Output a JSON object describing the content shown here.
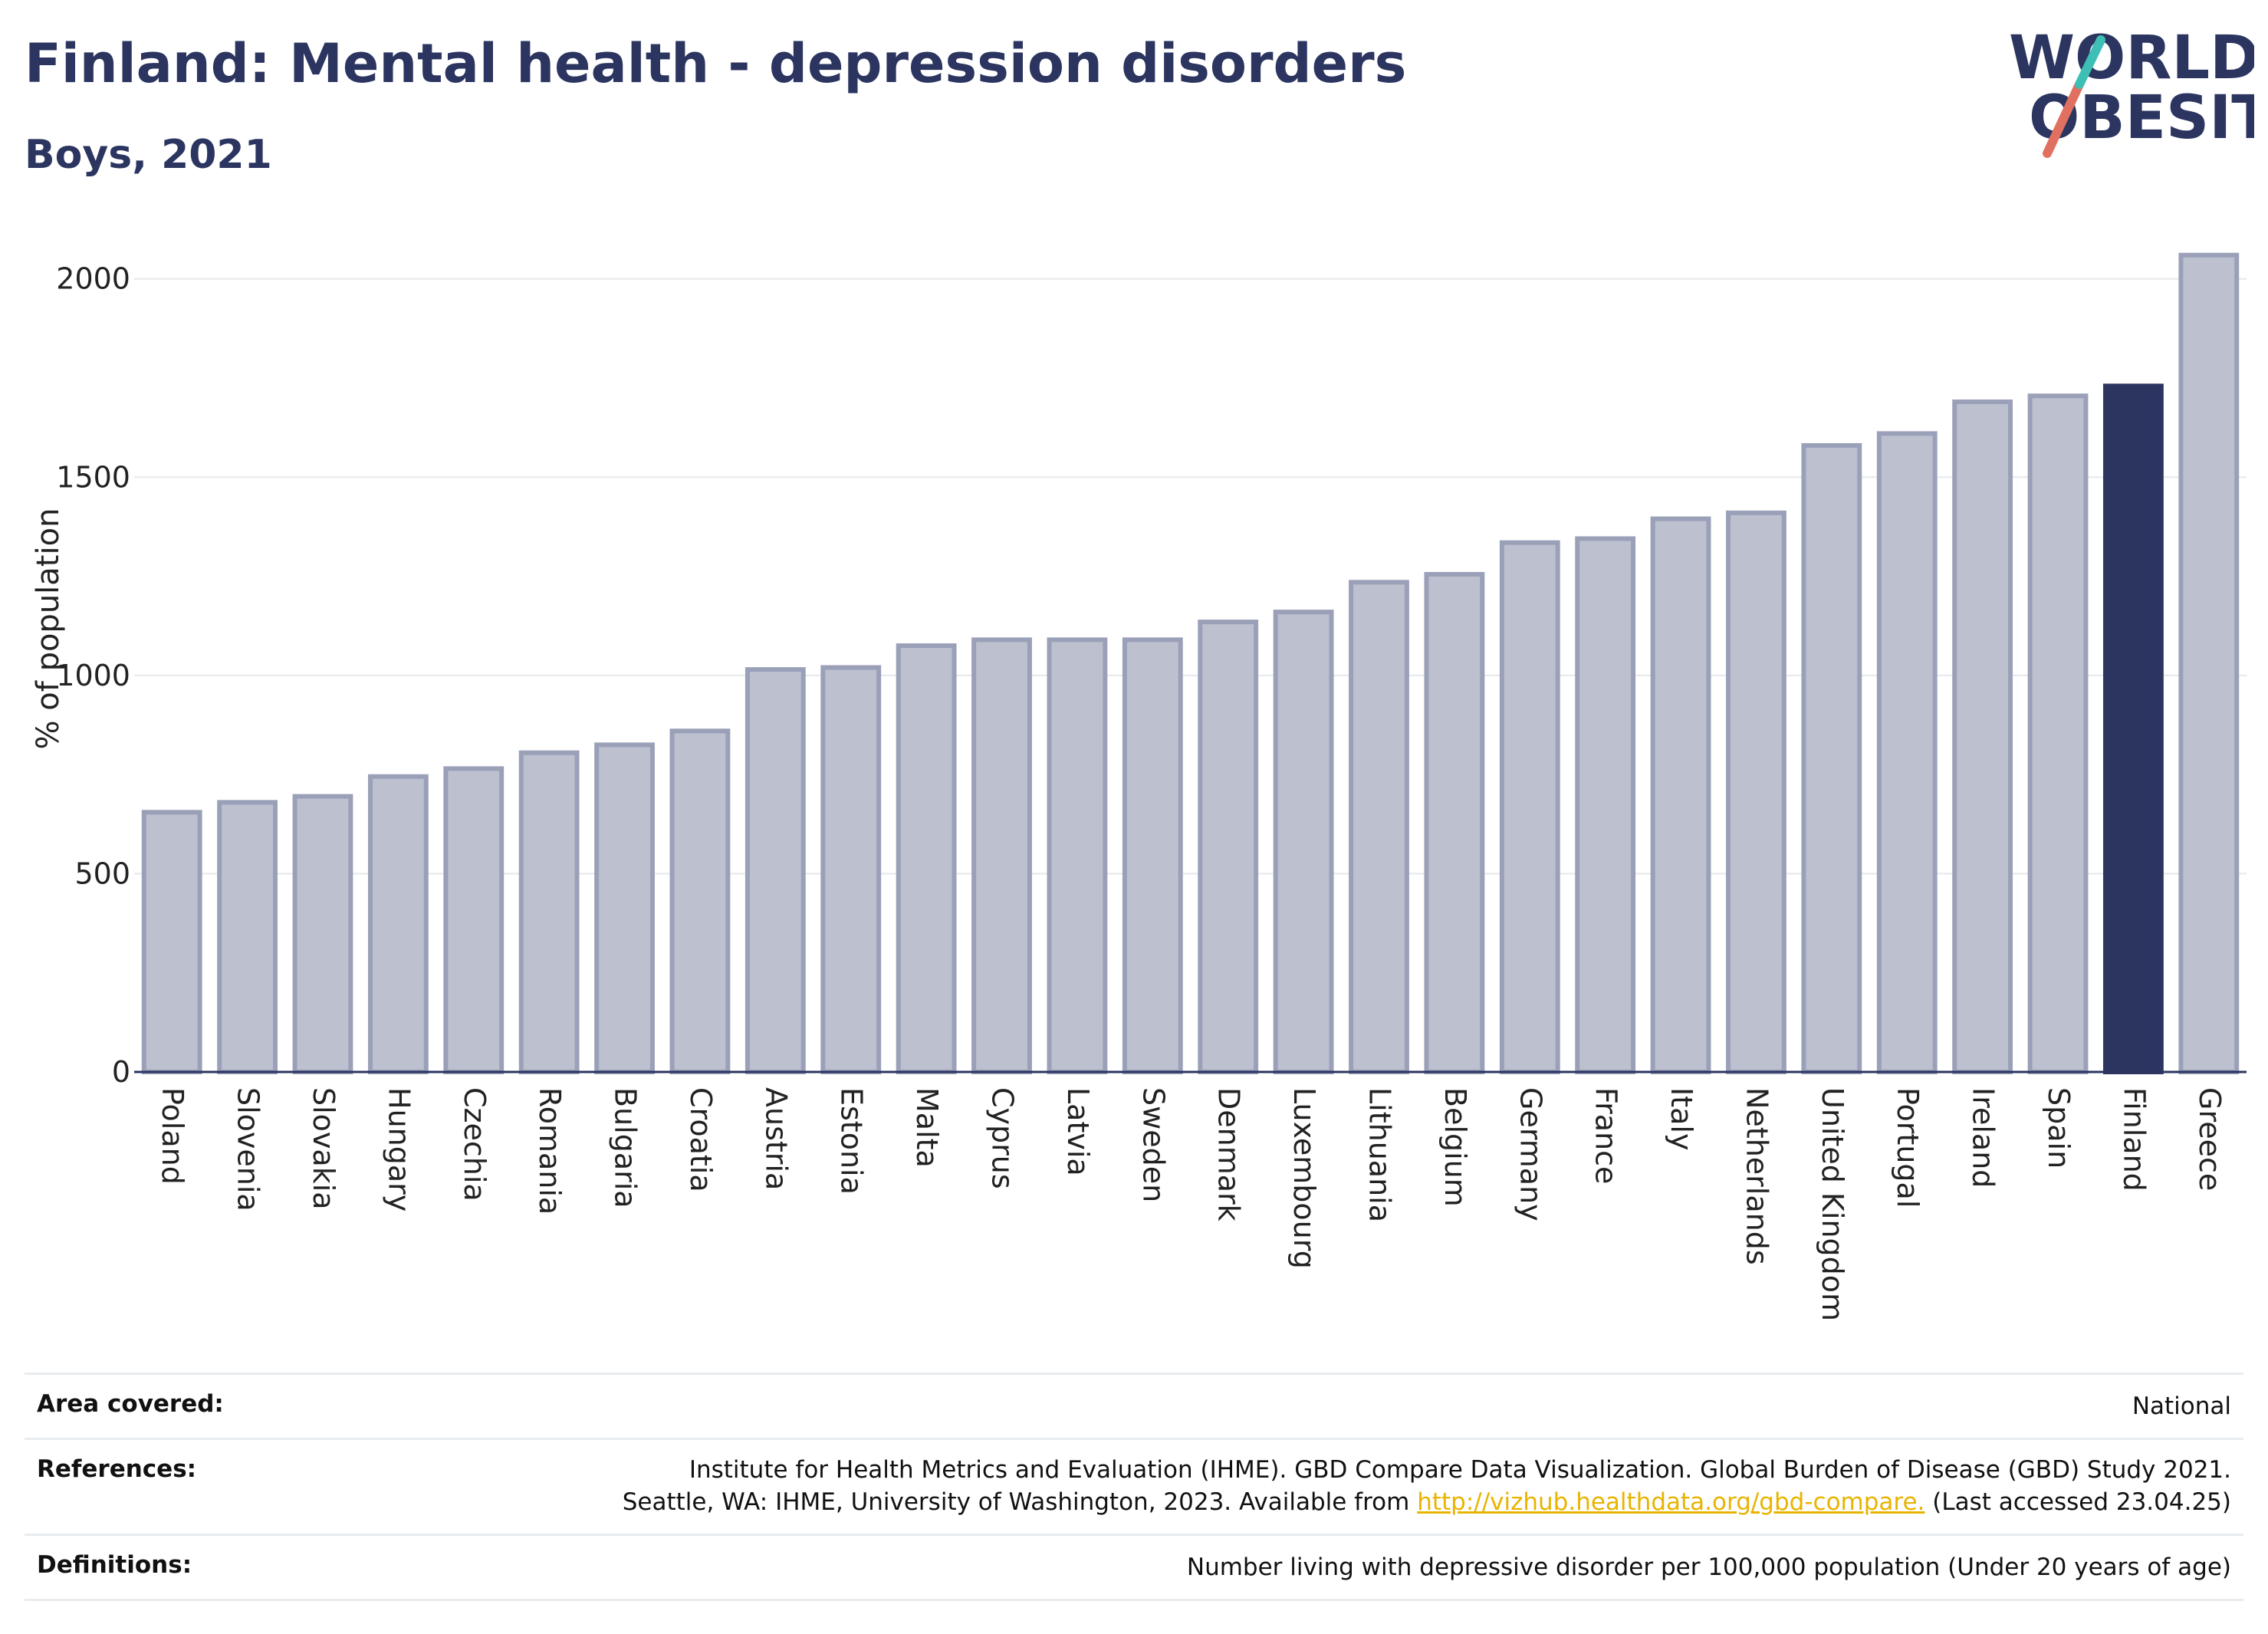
{
  "header": {
    "title": "Finland: Mental health - depression disorders",
    "subtitle": "Boys, 2021"
  },
  "logo": {
    "line1": "WORLD",
    "line2": "OBESITY"
  },
  "chart_data": {
    "type": "bar",
    "ylabel": "% of population",
    "ylim": [
      0,
      2100
    ],
    "yticks": [
      0,
      500,
      1000,
      1500,
      2000
    ],
    "grid": true,
    "highlight": "Finland",
    "colors": {
      "bar": "#bcc0cf",
      "bar_edge": "#9aa0b8",
      "highlight": "#2b3560"
    },
    "categories": [
      "Poland",
      "Slovenia",
      "Slovakia",
      "Hungary",
      "Czechia",
      "Romania",
      "Bulgaria",
      "Croatia",
      "Austria",
      "Estonia",
      "Malta",
      "Cyprus",
      "Latvia",
      "Sweden",
      "Denmark",
      "Luxembourg",
      "Lithuania",
      "Belgium",
      "Germany",
      "France",
      "Italy",
      "Netherlands",
      "United Kingdom",
      "Portugal",
      "Ireland",
      "Spain",
      "Finland",
      "Greece"
    ],
    "values": [
      655,
      680,
      695,
      745,
      765,
      805,
      825,
      860,
      1015,
      1020,
      1075,
      1090,
      1090,
      1090,
      1135,
      1160,
      1235,
      1255,
      1335,
      1345,
      1395,
      1410,
      1580,
      1610,
      1690,
      1705,
      1730,
      2060
    ]
  },
  "info": {
    "area_label": "Area covered:",
    "area_value": "National",
    "references_label": "References:",
    "references_line1": "Institute for Health Metrics and Evaluation (IHME). GBD Compare Data Visualization. Global Burden of Disease (GBD) Study 2021.",
    "references_line2_pre": "Seattle, WA: IHME, University of Washington, 2023. Available from ",
    "references_link": "http://vizhub.healthdata.org/gbd-compare.",
    "references_line2_post": " (Last accessed 23.04.25)",
    "definitions_label": "Definitions:",
    "definitions_value": "Number living with depressive disorder per 100,000 population (Under 20 years of age)"
  }
}
